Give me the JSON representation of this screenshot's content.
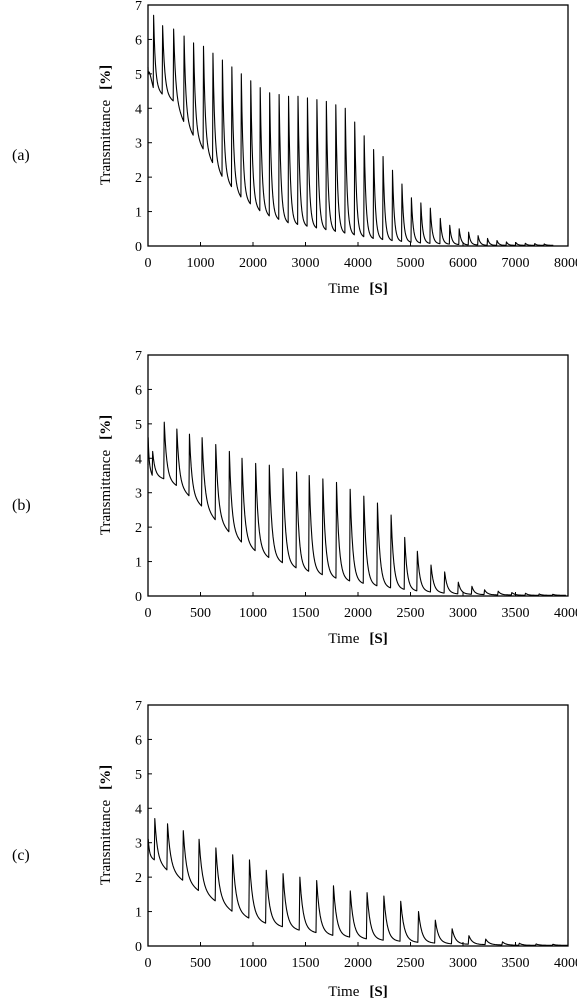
{
  "chart_data": [
    {
      "type": "line",
      "panel_label": "(a)",
      "xlabel": "Time",
      "xunit": "[S]",
      "ylabel": "Transmittance",
      "yunit": "[%]",
      "xlim": [
        0,
        8000
      ],
      "ylim": [
        0,
        7
      ],
      "xticks": [
        "0",
        "1000",
        "2000",
        "3000",
        "4000",
        "5000",
        "6000",
        "7000",
        "8000"
      ],
      "yticks": [
        "0",
        "1",
        "2",
        "3",
        "4",
        "5",
        "6",
        "7"
      ],
      "grid": false,
      "series": [
        {
          "peaks": [
            [
              0,
              5.0,
              5.2
            ],
            [
              100,
              6.7,
              4.6
            ],
            [
              270,
              6.4,
              4.4
            ],
            [
              480,
              6.3,
              4.2
            ],
            [
              680,
              6.1,
              3.6
            ],
            [
              860,
              5.9,
              3.2
            ],
            [
              1050,
              5.8,
              2.8
            ],
            [
              1230,
              5.6,
              2.4
            ],
            [
              1410,
              5.4,
              2.0
            ],
            [
              1590,
              5.2,
              1.7
            ],
            [
              1770,
              5.0,
              1.4
            ],
            [
              1950,
              4.8,
              1.2
            ],
            [
              2130,
              4.6,
              1.0
            ],
            [
              2310,
              4.45,
              0.85
            ],
            [
              2490,
              4.4,
              0.75
            ],
            [
              2670,
              4.35,
              0.65
            ],
            [
              2850,
              4.35,
              0.6
            ],
            [
              3030,
              4.3,
              0.55
            ],
            [
              3210,
              4.25,
              0.5
            ],
            [
              3390,
              4.2,
              0.45
            ],
            [
              3570,
              4.1,
              0.4
            ],
            [
              3750,
              4.0,
              0.35
            ],
            [
              3930,
              3.6,
              0.3
            ],
            [
              4110,
              3.2,
              0.25
            ],
            [
              4290,
              2.8,
              0.2
            ],
            [
              4470,
              2.6,
              0.17
            ],
            [
              4650,
              2.2,
              0.14
            ],
            [
              4830,
              1.8,
              0.12
            ],
            [
              5010,
              1.4,
              0.1
            ],
            [
              5190,
              1.25,
              0.08
            ],
            [
              5370,
              1.1,
              0.07
            ],
            [
              5560,
              0.8,
              0.06
            ],
            [
              5740,
              0.6,
              0.05
            ],
            [
              5920,
              0.5,
              0.04
            ],
            [
              6100,
              0.4,
              0.03
            ],
            [
              6280,
              0.3,
              0.03
            ],
            [
              6460,
              0.22,
              0.02
            ],
            [
              6640,
              0.16,
              0.02
            ],
            [
              6820,
              0.12,
              0.02
            ],
            [
              7000,
              0.1,
              0.02
            ],
            [
              7180,
              0.08,
              0.02
            ],
            [
              7360,
              0.07,
              0.02
            ],
            [
              7540,
              0.06,
              0.02
            ]
          ]
        }
      ]
    },
    {
      "type": "line",
      "panel_label": "(b)",
      "xlabel": "Time",
      "xunit": "[S]",
      "ylabel": "Transmittance",
      "yunit": "[%]",
      "xlim": [
        0,
        4000
      ],
      "ylim": [
        0,
        7
      ],
      "xticks": [
        "0",
        "500",
        "1000",
        "1500",
        "2000",
        "2500",
        "3000",
        "3500",
        "4000"
      ],
      "yticks": [
        "0",
        "1",
        "2",
        "3",
        "4",
        "5",
        "6",
        "7"
      ],
      "grid": false,
      "series": [
        {
          "peaks": [
            [
              0,
              4.6,
              3.8
            ],
            [
              40,
              4.2,
              3.5
            ],
            [
              150,
              5.05,
              3.4
            ],
            [
              270,
              4.85,
              3.2
            ],
            [
              390,
              4.7,
              2.9
            ],
            [
              510,
              4.6,
              2.6
            ],
            [
              640,
              4.4,
              2.2
            ],
            [
              770,
              4.2,
              1.85
            ],
            [
              890,
              4.0,
              1.55
            ],
            [
              1020,
              3.85,
              1.3
            ],
            [
              1150,
              3.8,
              1.1
            ],
            [
              1280,
              3.7,
              0.95
            ],
            [
              1410,
              3.6,
              0.8
            ],
            [
              1530,
              3.5,
              0.7
            ],
            [
              1660,
              3.4,
              0.6
            ],
            [
              1790,
              3.3,
              0.5
            ],
            [
              1920,
              3.1,
              0.42
            ],
            [
              2050,
              2.9,
              0.35
            ],
            [
              2180,
              2.7,
              0.28
            ],
            [
              2310,
              2.35,
              0.22
            ],
            [
              2440,
              1.7,
              0.18
            ],
            [
              2560,
              1.3,
              0.14
            ],
            [
              2690,
              0.9,
              0.11
            ],
            [
              2820,
              0.7,
              0.08
            ],
            [
              2950,
              0.4,
              0.06
            ],
            [
              3080,
              0.28,
              0.05
            ],
            [
              3200,
              0.18,
              0.04
            ],
            [
              3330,
              0.14,
              0.03
            ],
            [
              3460,
              0.1,
              0.03
            ],
            [
              3590,
              0.08,
              0.02
            ],
            [
              3720,
              0.06,
              0.02
            ],
            [
              3850,
              0.05,
              0.02
            ]
          ]
        }
      ]
    },
    {
      "type": "line",
      "panel_label": "(c)",
      "xlabel": "Time",
      "xunit": "[S]",
      "ylabel": "Transmittance",
      "yunit": "[%]",
      "xlim": [
        0,
        4000
      ],
      "ylim": [
        0,
        7
      ],
      "xticks": [
        "0",
        "500",
        "1000",
        "1500",
        "2000",
        "2500",
        "3000",
        "3500",
        "4000"
      ],
      "yticks": [
        "0",
        "1",
        "2",
        "3",
        "4",
        "5",
        "6",
        "7"
      ],
      "grid": false,
      "series": [
        {
          "peaks": [
            [
              0,
              3.1,
              2.6
            ],
            [
              60,
              3.7,
              2.5
            ],
            [
              180,
              3.55,
              2.2
            ],
            [
              330,
              3.35,
              1.9
            ],
            [
              480,
              3.1,
              1.6
            ],
            [
              640,
              2.85,
              1.3
            ],
            [
              800,
              2.65,
              1.0
            ],
            [
              960,
              2.5,
              0.8
            ],
            [
              1120,
              2.2,
              0.65
            ],
            [
              1280,
              2.1,
              0.55
            ],
            [
              1440,
              2.0,
              0.45
            ],
            [
              1600,
              1.9,
              0.38
            ],
            [
              1760,
              1.75,
              0.3
            ],
            [
              1920,
              1.6,
              0.25
            ],
            [
              2080,
              1.55,
              0.2
            ],
            [
              2240,
              1.45,
              0.16
            ],
            [
              2400,
              1.3,
              0.13
            ],
            [
              2570,
              1.0,
              0.1
            ],
            [
              2730,
              0.75,
              0.08
            ],
            [
              2890,
              0.5,
              0.06
            ],
            [
              3050,
              0.3,
              0.05
            ],
            [
              3210,
              0.2,
              0.04
            ],
            [
              3370,
              0.12,
              0.03
            ],
            [
              3530,
              0.08,
              0.02
            ],
            [
              3690,
              0.06,
              0.02
            ],
            [
              3850,
              0.05,
              0.02
            ]
          ]
        }
      ]
    }
  ]
}
